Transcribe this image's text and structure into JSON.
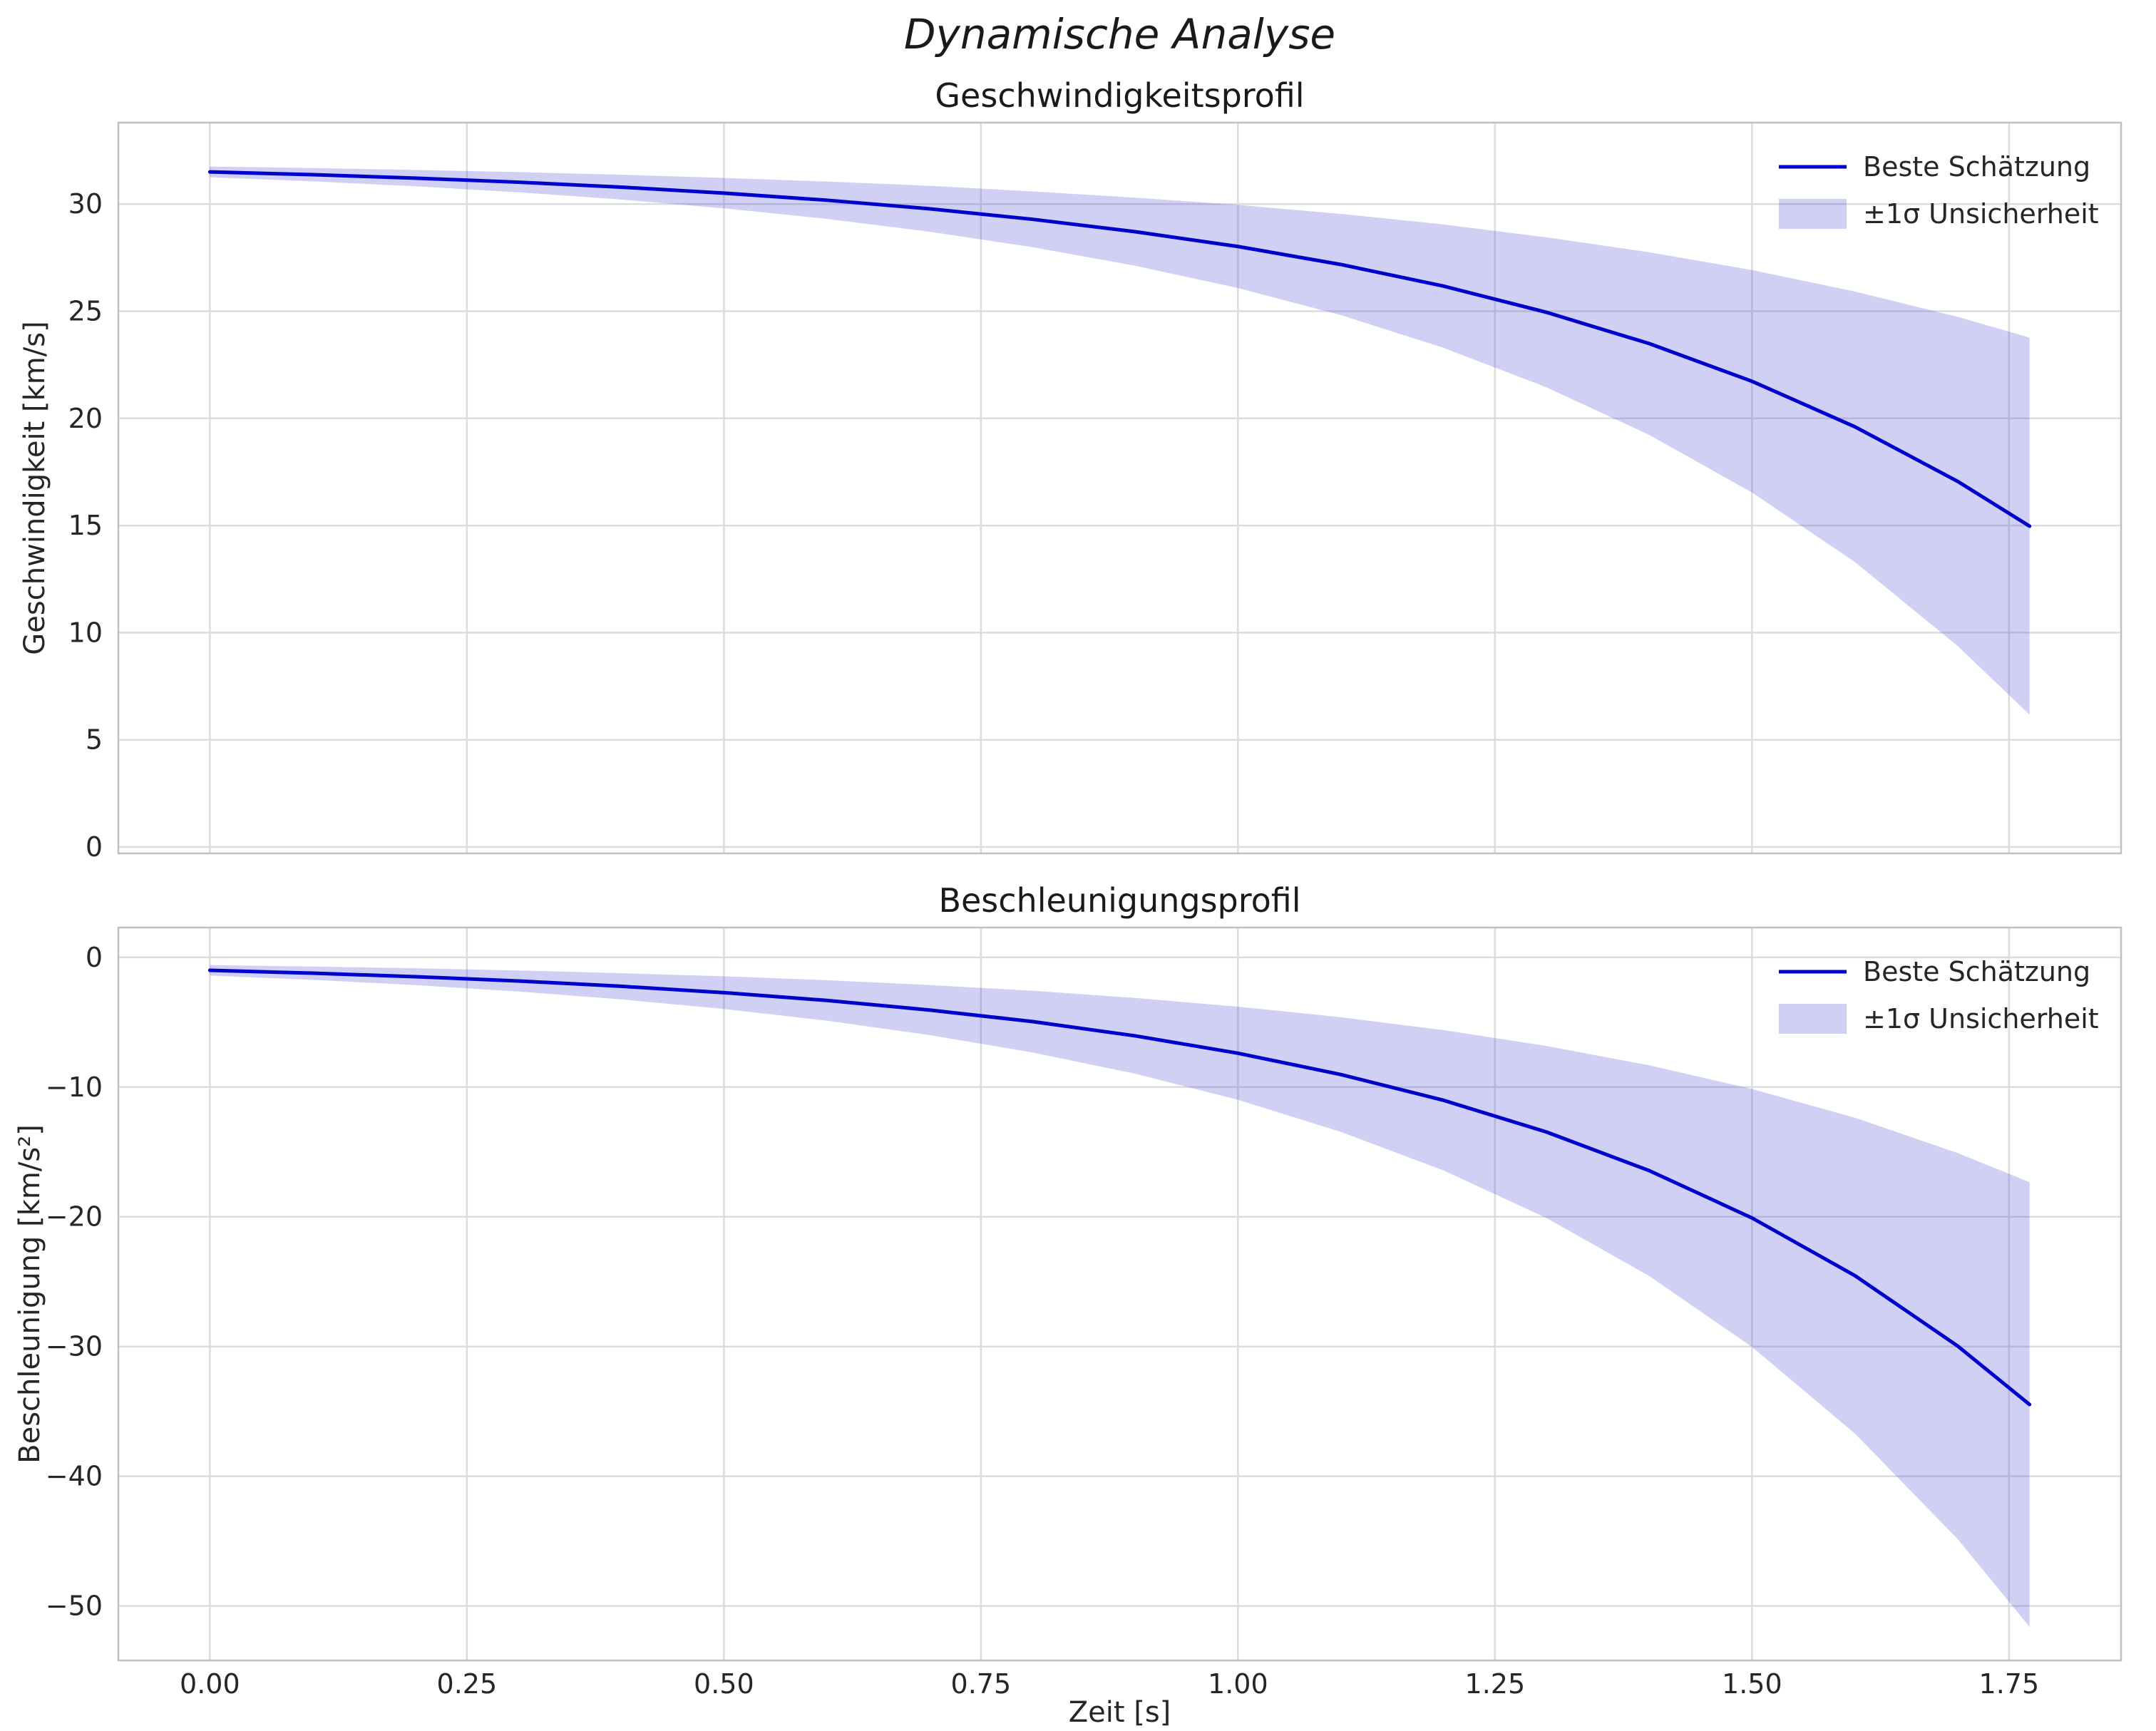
{
  "figure": {
    "suptitle": "Dynamische Analyse",
    "colors": {
      "line": "#0000cd",
      "band": "rgba(80,80,215,0.27)",
      "grid": "#dcdcdc",
      "spine": "#c0c0c0",
      "text": "#262626"
    }
  },
  "chart_data": [
    {
      "type": "line",
      "title": "Geschwindigkeitsprofil",
      "xlabel": "",
      "ylabel": "Geschwindigkeit [km/s]",
      "legend": [
        "Beste Schätzung",
        "±1σ Unsicherheit"
      ],
      "legend_position": "upper right",
      "grid": true,
      "xlim": [
        -0.089,
        1.859
      ],
      "ylim": [
        -0.3,
        33.8
      ],
      "xticks": [
        0,
        0.25,
        0.5,
        0.75,
        1.0,
        1.25,
        1.5,
        1.75
      ],
      "xtick_labels": [
        "0.00",
        "0.25",
        "0.50",
        "0.75",
        "1.00",
        "1.25",
        "1.50",
        "1.75"
      ],
      "show_xtick_labels": false,
      "yticks": [
        0,
        5,
        10,
        15,
        20,
        25,
        30
      ],
      "ytick_labels": [
        "0",
        "5",
        "10",
        "15",
        "20",
        "25",
        "30"
      ],
      "x": [
        0,
        0.1,
        0.2,
        0.3,
        0.4,
        0.5,
        0.6,
        0.7,
        0.8,
        0.9,
        1.0,
        1.1,
        1.2,
        1.3,
        1.4,
        1.5,
        1.6,
        1.7,
        1.77
      ],
      "series": [
        {
          "name": "Beste Schätzung",
          "values": [
            31.5,
            31.37,
            31.21,
            31.02,
            30.79,
            30.51,
            30.18,
            29.78,
            29.29,
            28.71,
            28.02,
            27.18,
            26.17,
            24.95,
            23.49,
            21.73,
            19.61,
            17.06,
            14.97
          ]
        }
      ],
      "band": {
        "name": "±1σ Unsicherheit",
        "upper": [
          31.75,
          31.68,
          31.59,
          31.49,
          31.37,
          31.22,
          31.05,
          30.85,
          30.59,
          30.3,
          29.96,
          29.54,
          29.05,
          28.45,
          27.75,
          26.92,
          25.92,
          24.74,
          23.77
        ],
        "lower": [
          31.25,
          31.06,
          30.83,
          30.55,
          30.21,
          29.8,
          29.31,
          28.71,
          27.99,
          27.12,
          26.08,
          24.82,
          23.29,
          21.45,
          19.23,
          16.54,
          13.3,
          9.38,
          6.17
        ]
      }
    },
    {
      "type": "line",
      "title": "Beschleunigungsprofil",
      "xlabel": "Zeit [s]",
      "ylabel": "Beschleunigung [km/s²]",
      "legend": [
        "Beste Schätzung",
        "±1σ Unsicherheit"
      ],
      "legend_position": "upper right",
      "grid": true,
      "xlim": [
        -0.089,
        1.859
      ],
      "ylim": [
        -54.2,
        2.3
      ],
      "xticks": [
        0,
        0.25,
        0.5,
        0.75,
        1.0,
        1.25,
        1.5,
        1.75
      ],
      "xtick_labels": [
        "0.00",
        "0.25",
        "0.50",
        "0.75",
        "1.00",
        "1.25",
        "1.50",
        "1.75"
      ],
      "show_xtick_labels": true,
      "yticks": [
        0,
        -10,
        -20,
        -30,
        -40,
        -50
      ],
      "ytick_labels": [
        "0",
        "−10",
        "−20",
        "−30",
        "−40",
        "−50"
      ],
      "x": [
        0,
        0.1,
        0.2,
        0.3,
        0.4,
        0.5,
        0.6,
        0.7,
        0.8,
        0.9,
        1.0,
        1.1,
        1.2,
        1.3,
        1.4,
        1.5,
        1.6,
        1.7,
        1.77
      ],
      "series": [
        {
          "name": "Beste Schätzung",
          "values": [
            -1.0,
            -1.22,
            -1.49,
            -1.82,
            -2.23,
            -2.72,
            -3.32,
            -4.06,
            -4.95,
            -6.05,
            -7.39,
            -9.03,
            -11.02,
            -13.46,
            -16.44,
            -20.09,
            -24.53,
            -29.96,
            -34.47
          ]
        }
      ],
      "band": {
        "name": "±1σ Unsicherheit",
        "upper": [
          -0.6,
          -0.71,
          -0.84,
          -1.01,
          -1.22,
          -1.46,
          -1.76,
          -2.13,
          -2.57,
          -3.13,
          -3.8,
          -4.61,
          -5.61,
          -6.83,
          -8.32,
          -10.15,
          -12.36,
          -15.08,
          -17.33
        ],
        "lower": [
          -1.4,
          -1.73,
          -2.14,
          -2.63,
          -3.24,
          -3.98,
          -4.88,
          -5.99,
          -7.33,
          -8.97,
          -10.98,
          -13.45,
          -16.43,
          -20.09,
          -24.56,
          -30.03,
          -36.7,
          -44.84,
          -51.61
        ]
      }
    }
  ]
}
